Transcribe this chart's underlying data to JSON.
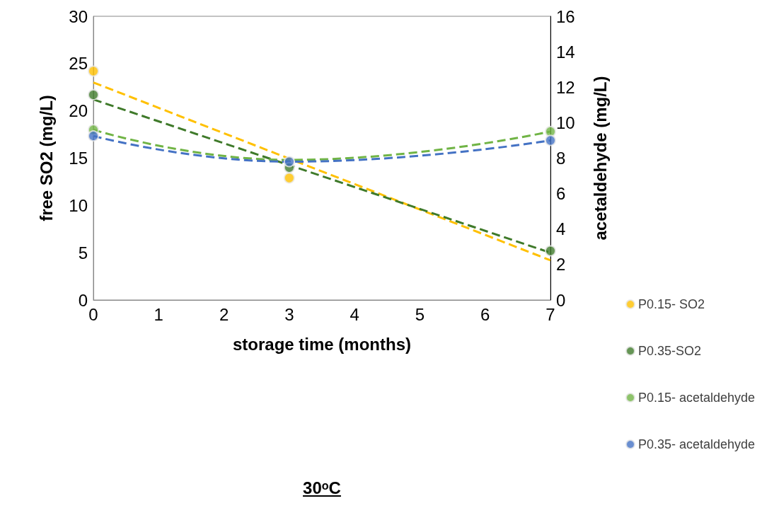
{
  "chart_data": {
    "type": "scatter",
    "annotations": [
      "30ᵒC"
    ],
    "xlabel": "storage time (months)",
    "ylabel": "free SO2 (mg/L)",
    "y2label": "acetaldehyde (mg/L)",
    "xlim": [
      0,
      7
    ],
    "xticks": [
      0,
      1,
      2,
      3,
      4,
      5,
      6,
      7
    ],
    "ylim": [
      0,
      30
    ],
    "yticks": [
      0,
      5,
      10,
      15,
      20,
      25,
      30
    ],
    "y2lim": [
      0,
      16
    ],
    "y2ticks": [
      0,
      2,
      4,
      6,
      8,
      10,
      12,
      14,
      16
    ],
    "grid": false,
    "legend": "right",
    "marker": "circle",
    "series": [
      {
        "name": "P0.15- SO2",
        "color": "#ffc000",
        "x": [
          0,
          3
        ],
        "values": [
          24.2,
          12.9
        ]
      },
      {
        "name": "P0.35-SO2",
        "color": "#3f7a2a",
        "x": [
          0,
          3,
          7
        ],
        "values": [
          21.7,
          14.0,
          5.2
        ]
      },
      {
        "name": "P0.15- acetaldehyde",
        "color": "#70b445",
        "axis": "y2",
        "x": [
          0,
          7
        ],
        "values": [
          9.6,
          9.5
        ]
      },
      {
        "name": "P0.35- acetaldehyde",
        "color": "#4472c4",
        "axis": "y2",
        "x": [
          0,
          3,
          7
        ],
        "values": [
          9.25,
          7.8,
          9.0
        ]
      },
      {
        "type": "line",
        "color": "#ffc000",
        "line_style": "dashed",
        "marker": "none",
        "x": [
          0,
          7
        ],
        "values": [
          23.0,
          4.2
        ]
      },
      {
        "type": "line",
        "color": "#3f7a2a",
        "line_style": "dashed",
        "marker": "none",
        "x": [
          0,
          7
        ],
        "values": [
          21.2,
          5.0
        ]
      },
      {
        "type": "line",
        "color": "#70b445",
        "line_style": "dashed",
        "marker": "none",
        "axis": "y2",
        "x": [
          0,
          3,
          7
        ],
        "values": [
          9.6,
          7.9,
          9.5
        ]
      },
      {
        "type": "line",
        "color": "#4472c4",
        "line_style": "dashed",
        "marker": "none",
        "axis": "y2",
        "x": [
          0,
          3,
          7
        ],
        "values": [
          9.25,
          7.8,
          9.0
        ]
      }
    ]
  }
}
